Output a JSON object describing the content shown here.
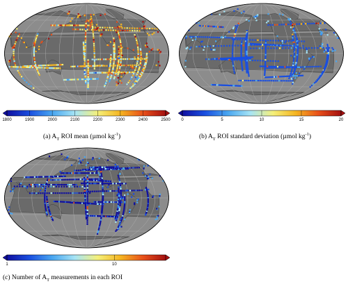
{
  "panels": [
    {
      "id": "a",
      "caption_prefix": "(a) A",
      "caption_sub": "T",
      "caption_rest": " ROI mean (µmol kg",
      "caption_sup": "-1",
      "caption_end": ")",
      "colorbar": {
        "ticks": [
          "1800",
          "1900",
          "2000",
          "2100",
          "2200",
          "2300",
          "2400",
          "2500"
        ],
        "min": 1800,
        "max": 2500,
        "scale": "linear",
        "extend": "both"
      },
      "dominant_color": "#f2a21e"
    },
    {
      "id": "b",
      "caption_prefix": "(b) A",
      "caption_sub": "T",
      "caption_rest": " ROI standard deviation (µmol kg",
      "caption_sup": "-1",
      "caption_end": ")",
      "colorbar": {
        "ticks": [
          "0",
          "5",
          "10",
          "15",
          "20"
        ],
        "min": 0,
        "max": 20,
        "scale": "linear",
        "extend": "both"
      },
      "dominant_color": "#2a4fd6"
    },
    {
      "id": "c",
      "caption_prefix": "(c) Number of A",
      "caption_sub": "T",
      "caption_rest": " measurements in each ROI",
      "caption_sup": "",
      "caption_end": "",
      "colorbar": {
        "ticks": [
          "1",
          "10"
        ],
        "min": 1,
        "max": 30,
        "scale": "log",
        "extend": "both"
      },
      "dominant_color": "#1c2fb8"
    }
  ],
  "colormap": [
    "#1010a0",
    "#1a4fe0",
    "#49a6f0",
    "#a6e4f5",
    "#f5f07a",
    "#f5b521",
    "#e8501a",
    "#a51010"
  ],
  "map_colors": {
    "ocean": "#8c8c8c",
    "land": "#6a6a6a",
    "grid": "#b5b5b5"
  }
}
